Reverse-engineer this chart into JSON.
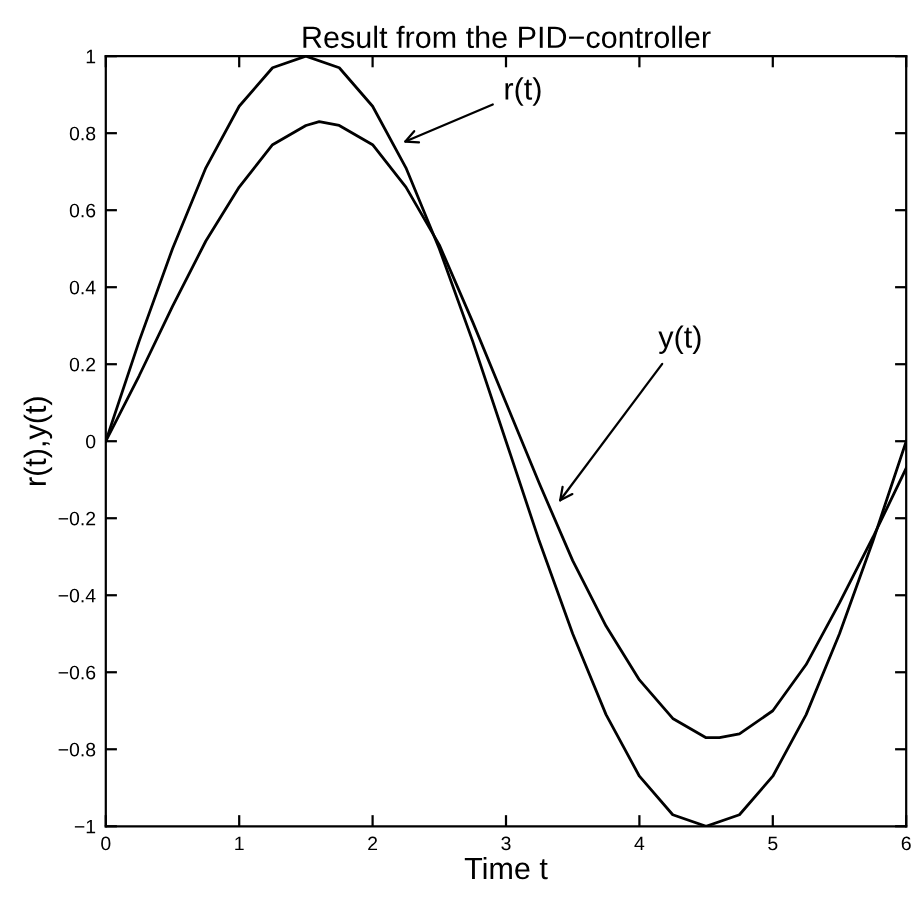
{
  "chart_data": {
    "type": "line",
    "title": "Result from the PID−controller",
    "xlabel": "Time t",
    "ylabel": "r(t),y(t)",
    "xlim": [
      0,
      6
    ],
    "ylim": [
      -1,
      1
    ],
    "xticks": [
      0,
      1,
      2,
      3,
      4,
      5,
      6
    ],
    "yticks": [
      -1,
      -0.8,
      -0.6,
      -0.4,
      -0.2,
      0,
      0.2,
      0.4,
      0.6,
      0.8,
      1
    ],
    "grid": false,
    "legend": false,
    "marker": "none",
    "line_style": "solid",
    "series": [
      {
        "color": "#000000",
        "x": [
          0,
          0.25,
          0.5,
          0.75,
          1,
          1.25,
          1.5,
          1.75,
          2,
          2.25,
          2.5,
          2.75,
          3,
          3.25,
          3.5,
          3.75,
          4,
          4.25,
          4.5,
          4.75,
          5,
          5.25,
          5.5,
          5.75,
          6
        ],
        "values": [
          0,
          0.26,
          0.5,
          0.71,
          0.87,
          0.97,
          1,
          0.97,
          0.87,
          0.71,
          0.5,
          0.26,
          0,
          -0.26,
          -0.5,
          -0.71,
          -0.87,
          -0.97,
          -1,
          -0.97,
          -0.87,
          -0.71,
          -0.5,
          -0.26,
          0
        ]
      },
      {
        "color": "#000000",
        "x": [
          0,
          0.25,
          0.5,
          0.75,
          1,
          1.25,
          1.5,
          1.6,
          1.75,
          2,
          2.25,
          2.5,
          2.75,
          3,
          3.25,
          3.5,
          3.75,
          4,
          4.25,
          4.5,
          4.6,
          4.75,
          5,
          5.25,
          5.5,
          5.75,
          6
        ],
        "values": [
          0,
          0.17,
          0.35,
          0.52,
          0.66,
          0.77,
          0.82,
          0.83,
          0.82,
          0.77,
          0.66,
          0.51,
          0.31,
          0.1,
          -0.11,
          -0.31,
          -0.48,
          -0.62,
          -0.72,
          -0.77,
          -0.77,
          -0.76,
          -0.7,
          -0.58,
          -0.42,
          -0.25,
          -0.07
        ]
      }
    ],
    "annotations": [
      {
        "text": "r(t)",
        "x": 2.19,
        "y": 0.77
      },
      {
        "text": "y(t)",
        "x": 3.37,
        "y": -0.17
      }
    ]
  }
}
